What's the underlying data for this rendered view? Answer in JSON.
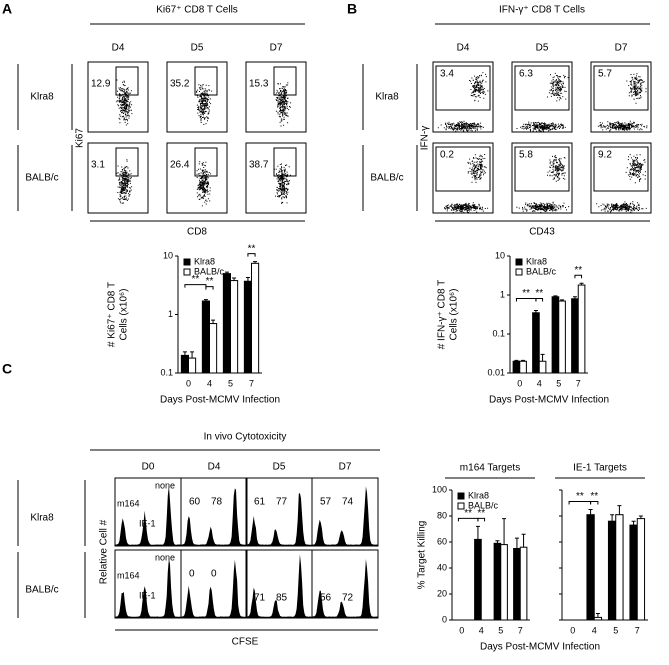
{
  "panels": [
    {
      "letter": "A",
      "title": "Ki67⁺ CD8 T Cells",
      "columns": [
        "D4",
        "D5",
        "D7"
      ],
      "rows": [
        "Klra8",
        "BALB/c"
      ],
      "y_label": "Ki67",
      "x_label": "CD8",
      "gates": [
        [
          12.9,
          35.2,
          15.3
        ],
        [
          3.1,
          26.4,
          38.7
        ]
      ]
    },
    {
      "letter": "B",
      "title": "IFN-γ⁺ CD8 T Cells",
      "columns": [
        "D4",
        "D5",
        "D7"
      ],
      "rows": [
        "Klra8",
        "BALB/c"
      ],
      "y_label": "IFN-γ",
      "x_label": "CD43",
      "gates": [
        [
          3.4,
          6.3,
          5.7
        ],
        [
          0.2,
          5.8,
          9.2
        ]
      ]
    },
    {
      "letter": "C",
      "title": "In vivo Cytotoxicity",
      "columns": [
        "D0",
        "D4",
        "D5",
        "D7"
      ],
      "rows": [
        "Klra8",
        "BALB/c"
      ],
      "y_label": "Relative Cell #",
      "x_label": "CFSE",
      "histogram_labels": [
        [
          [
            "m164",
            "IE-1",
            "none"
          ],
          [
            60,
            78
          ],
          [
            61,
            77
          ],
          [
            57,
            74
          ]
        ],
        [
          [
            "m164",
            "IE-1",
            "none"
          ],
          [
            0,
            0
          ],
          [
            71,
            85
          ],
          [
            56,
            72
          ]
        ]
      ]
    }
  ],
  "charts": [
    {
      "type": "bar",
      "log_y": true,
      "y_label": [
        "# Ki67⁺ CD8 T",
        "Cells (x10⁶)"
      ],
      "x_label": "Days Post-MCMV Infection",
      "categories": [
        "0",
        "4",
        "5",
        "7"
      ],
      "ylim": [
        0.1,
        10
      ],
      "yticks": [
        0.1,
        1,
        10
      ],
      "legend": "top-left",
      "series": [
        {
          "name": "Klra8",
          "color": "#000000",
          "values": [
            0.2,
            1.7,
            5,
            3.7
          ],
          "errors": [
            0.03,
            0.1,
            0.3,
            0.6
          ]
        },
        {
          "name": "BALB/c",
          "color": "#ffffff",
          "values": [
            0.18,
            0.7,
            3.8,
            7.5
          ],
          "errors": [
            0.05,
            0.1,
            0.4,
            0.5
          ]
        }
      ],
      "annotations": [
        "**",
        "**",
        "**"
      ]
    },
    {
      "type": "bar",
      "log_y": true,
      "y_label": [
        "# IFN-γ⁺ CD8 T",
        "Cells (x10⁶)"
      ],
      "x_label": "Days Post-MCMV Infection",
      "categories": [
        "0",
        "4",
        "5",
        "7"
      ],
      "ylim": [
        0.01,
        10
      ],
      "yticks": [
        0.01,
        0.1,
        1,
        10
      ],
      "legend": "top-left",
      "series": [
        {
          "name": "Klra8",
          "color": "#000000",
          "values": [
            0.02,
            0.35,
            0.9,
            0.8
          ],
          "errors": [
            0.001,
            0.05,
            0.05,
            0.1
          ]
        },
        {
          "name": "BALB/c",
          "color": "#ffffff",
          "values": [
            0.02,
            0.02,
            0.7,
            1.8
          ],
          "errors": [
            0.001,
            0.01,
            0.05,
            0.2
          ]
        }
      ],
      "annotations": [
        "**",
        "**",
        "**"
      ]
    },
    {
      "type": "bar",
      "title": "m164 Targets",
      "y_label": [
        "% Target Killing"
      ],
      "x_label": "Days Post-MCMV Infection",
      "categories": [
        "0",
        "4",
        "5",
        "7"
      ],
      "ylim": [
        0,
        100
      ],
      "yticks": [
        0,
        20,
        40,
        60,
        80,
        100
      ],
      "legend": "top-left",
      "series": [
        {
          "name": "Klra8",
          "color": "#000000",
          "values": [
            0,
            62,
            59,
            55
          ],
          "errors": [
            0,
            10,
            2,
            8
          ]
        },
        {
          "name": "BALB/c",
          "color": "#ffffff",
          "values": [
            0,
            0,
            58,
            56
          ],
          "errors": [
            0,
            0,
            20,
            10
          ]
        }
      ],
      "annotations": [
        "**",
        "**"
      ]
    },
    {
      "type": "bar",
      "title": "IE-1 Targets",
      "categories": [
        "0",
        "4",
        "5",
        "7"
      ],
      "ylim": [
        0,
        100
      ],
      "series": [
        {
          "color": "#000000",
          "values": [
            0,
            81,
            76,
            73
          ],
          "errors": [
            0,
            4,
            5,
            3
          ]
        },
        {
          "color": "#ffffff",
          "values": [
            0,
            2,
            81,
            78
          ],
          "errors": [
            0,
            3,
            7,
            2
          ]
        }
      ],
      "annotations": [
        "**",
        "**"
      ]
    }
  ]
}
